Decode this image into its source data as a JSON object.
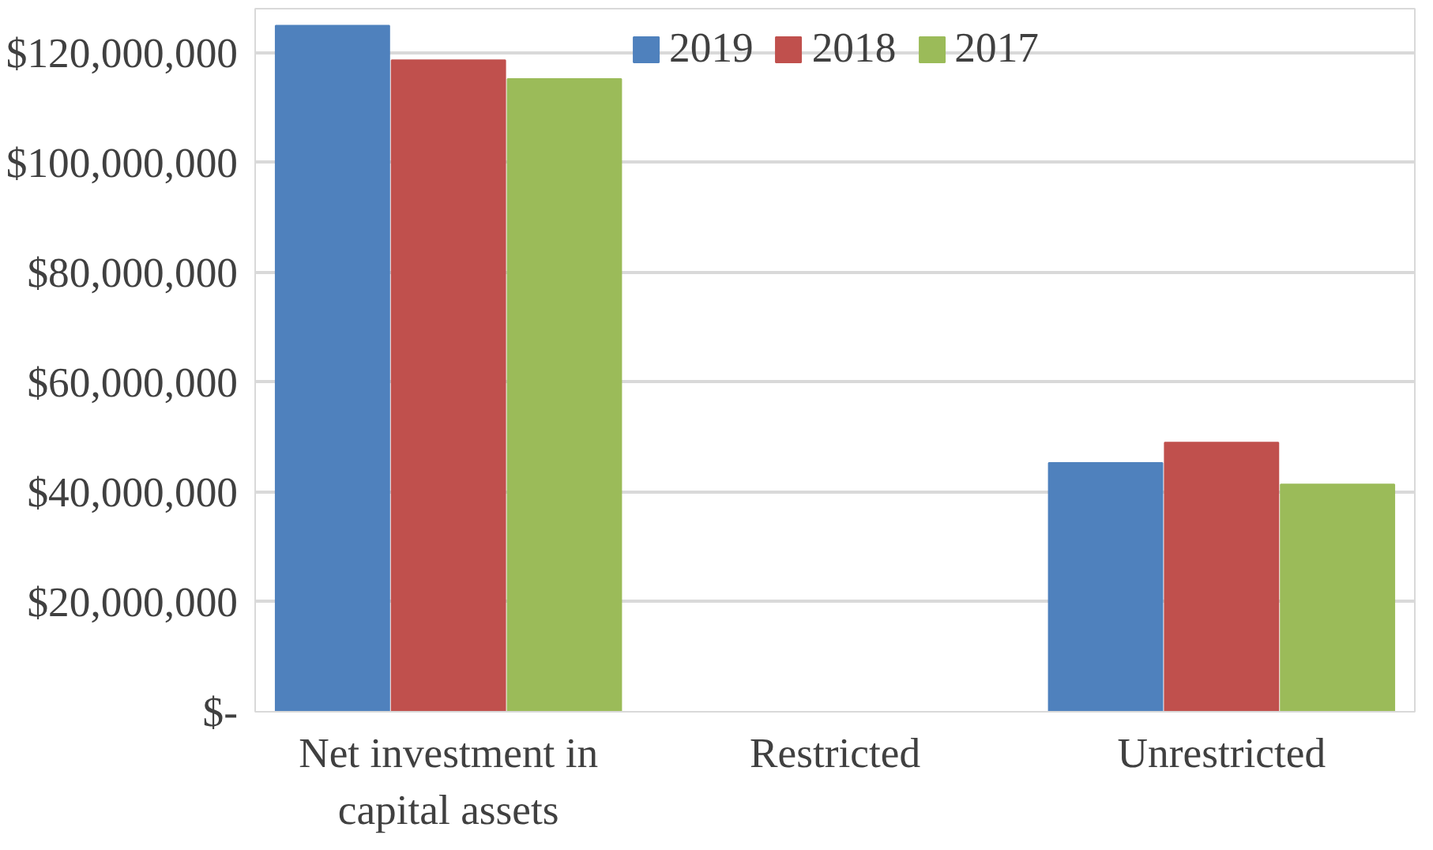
{
  "chart_data": {
    "type": "bar",
    "categories": [
      "Net investment in capital assets",
      "Restricted",
      "Unrestricted"
    ],
    "series": [
      {
        "name": "2019",
        "color": "#4f81bd",
        "values": [
          124900000,
          0,
          45300000
        ]
      },
      {
        "name": "2018",
        "color": "#c0504d",
        "values": [
          118600000,
          0,
          49000000
        ]
      },
      {
        "name": "2017",
        "color": "#9bbb59",
        "values": [
          115200000,
          0,
          41400000
        ]
      }
    ],
    "ylim": [
      0,
      128000000
    ],
    "yticks": [
      {
        "value": 0,
        "label": "$-"
      },
      {
        "value": 20000000,
        "label": "$20,000,000"
      },
      {
        "value": 40000000,
        "label": "$40,000,000"
      },
      {
        "value": 60000000,
        "label": "$60,000,000"
      },
      {
        "value": 80000000,
        "label": "$80,000,000"
      },
      {
        "value": 100000000,
        "label": "$100,000,000"
      },
      {
        "value": 120000000,
        "label": "$120,000,000"
      }
    ],
    "grid": "y",
    "legend": "top"
  }
}
